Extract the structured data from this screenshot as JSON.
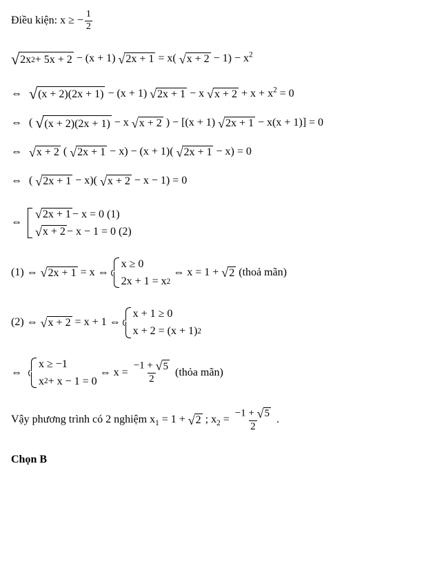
{
  "condition_label": "Điều kiện: ",
  "x_ge": "x ≥ −",
  "half_num": "1",
  "half_den": "2",
  "eq_main": {
    "r1": "2x",
    "r1b": " + 5x + 2",
    "mid1": " − (x + 1)",
    "r2": "2x + 1",
    "mid2": " = x(",
    "r3": "x + 2",
    "mid3": " − 1) − x"
  },
  "s2": {
    "r1": "(x + 2)(2x + 1)",
    "mid1": " − (x + 1)",
    "r2": "2x + 1",
    "mid2": " − x",
    "r3": "x + 2",
    "tail": " + x + x",
    "eq0": " = 0"
  },
  "s3": {
    "open": "(",
    "r1": "(x + 2)(2x + 1)",
    "mid1": " − x",
    "r2": "x + 2",
    "close1": ")",
    "mid2": " − [(x + 1)",
    "r3": "2x + 1",
    "tail": " − x(x + 1)] = 0"
  },
  "s4": {
    "r1": "x + 2",
    "open": "(",
    "r2": "2x + 1",
    "mid1": " − x) − (x + 1)(",
    "r3": "2x + 1",
    "tail": " − x) = 0"
  },
  "s5": {
    "open": "(",
    "r1": "2x + 1",
    "mid1": " − x)(",
    "r2": "x + 2",
    "tail": " − x − 1) = 0"
  },
  "cases_main": {
    "row1_rad": "2x + 1",
    "row1_tail": " − x = 0 (1)",
    "row2_rad": "x + 2",
    "row2_tail": " − x − 1 = 0 (2)"
  },
  "line1": {
    "label": "(1) ⇔ ",
    "r1": "2x + 1",
    "eqx": " = x ⇔ ",
    "c1": "x ≥ 0",
    "c2a": "2x + 1 = x",
    "res_pre": " ⇔ x = 1 + ",
    "res_rad": "2",
    "res_post": " (thoả mãn)"
  },
  "line2": {
    "label": "(2) ⇔ ",
    "r1": "x + 2",
    "eqx": " = x + 1 ⇔ ",
    "c1": "x + 1 ≥ 0",
    "c2a": "x + 2 = (x + 1)"
  },
  "line3": {
    "c1": "x ≥ −1",
    "c2a": "x",
    "c2b": " + x − 1 = 0",
    "res_pre": " ⇔ x = ",
    "frac_num_pre": "−1 + ",
    "frac_num_rad": "5",
    "frac_den": "2",
    "res_post": "  (thỏa mãn)"
  },
  "concl": {
    "text1": "Vậy phương trình có 2 nghiệm ",
    "x1_label": "x",
    "x1_eq_pre": " = 1 + ",
    "x1_rad": "2",
    "sep": "; ",
    "x2_label": "x",
    "x2_eq": " = ",
    "frac_num_pre": "−1 + ",
    "frac_num_rad": "5",
    "frac_den": "2",
    "period": " ."
  },
  "answer": "Chọn B",
  "sq": "2"
}
